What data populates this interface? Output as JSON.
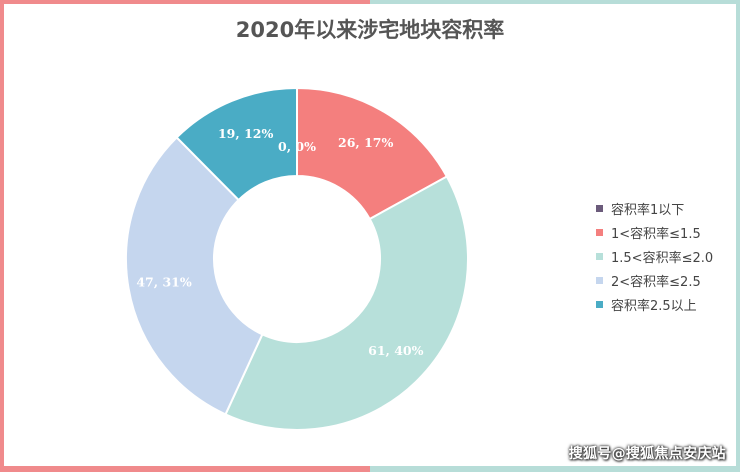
{
  "chart_data": {
    "type": "pie",
    "variant": "donut",
    "title": "2020年以来涉宅地块容积率",
    "legend_position": "right",
    "categories": [
      "容积率1以下",
      "1<容积率≤1.5",
      "1.5<容积率≤2.0",
      "2<容积率≤2.5",
      "容积率2.5以上"
    ],
    "values": [
      0,
      26,
      61,
      47,
      19
    ],
    "percents": [
      "0%",
      "17%",
      "40%",
      "31%",
      "12%"
    ],
    "data_labels": [
      "0, 0%",
      "26, 17%",
      "61, 40%",
      "47, 31%",
      "19, 12%"
    ],
    "colors": [
      "#6b5b7b",
      "#f47f7e",
      "#b7e0da",
      "#c5d6ee",
      "#4aacc5"
    ]
  },
  "watermark": "搜狐号@搜狐焦点安庆站"
}
